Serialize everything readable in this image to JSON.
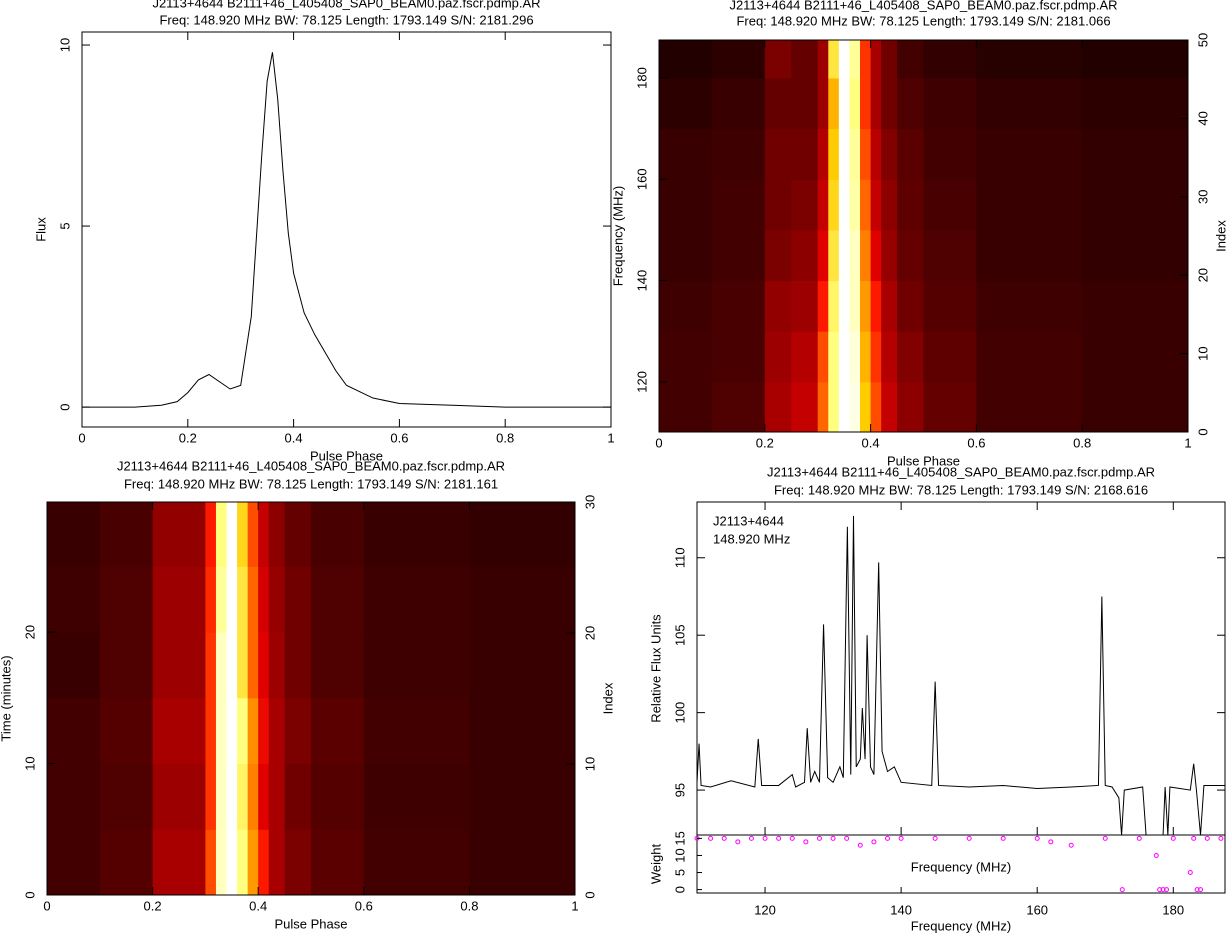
{
  "chart_data": [
    {
      "type": "line",
      "title": "J2113+4644  B2111+46_L405408_SAP0_BEAM0.paz.fscr.pdmp.AR",
      "subtitle": "Freq: 148.920 MHz BW: 78.125 Length: 1793.149 S/N: 2181.296",
      "xlabel": "Pulse Phase",
      "ylabel": "Flux",
      "xlim": [
        0,
        1
      ],
      "xticks": [
        0,
        0.2,
        0.4,
        0.6,
        0.8,
        1
      ],
      "ylim": [
        -0.55,
        10.36
      ],
      "yticks": [
        0,
        5,
        10
      ],
      "color": "#000000",
      "x": [
        0,
        0.05,
        0.1,
        0.15,
        0.18,
        0.2,
        0.22,
        0.24,
        0.26,
        0.28,
        0.3,
        0.32,
        0.34,
        0.35,
        0.36,
        0.37,
        0.38,
        0.39,
        0.4,
        0.42,
        0.44,
        0.46,
        0.48,
        0.5,
        0.55,
        0.6,
        0.7,
        0.8,
        0.9,
        1
      ],
      "values": [
        0,
        0,
        0,
        0.05,
        0.15,
        0.4,
        0.75,
        0.9,
        0.7,
        0.5,
        0.6,
        2.5,
        7,
        9,
        9.8,
        8.5,
        6.5,
        4.8,
        3.7,
        2.6,
        2.0,
        1.5,
        1.0,
        0.6,
        0.25,
        0.1,
        0.05,
        0,
        0,
        0
      ]
    },
    {
      "type": "heatmap",
      "title": "J2113+4644  B2111+46_L405408_SAP0_BEAM0.paz.fscr.pdmp.AR",
      "subtitle": "Freq: 148.920 MHz BW: 78.125 Length: 1793.149 S/N: 2181.066",
      "xlabel": "Pulse Phase",
      "ylabel": "Frequency (MHz)",
      "y2label": "Index",
      "xlim": [
        0,
        1
      ],
      "xticks": [
        0,
        0.2,
        0.4,
        0.6,
        0.8,
        1
      ],
      "ylim": [
        110.1,
        187.5
      ],
      "yticks": [
        120,
        140,
        160,
        180
      ],
      "y2lim": [
        0,
        50
      ],
      "y2ticks": [
        0,
        10,
        20,
        30,
        40,
        50
      ],
      "xbins": [
        0,
        0.1,
        0.2,
        0.25,
        0.3,
        0.32,
        0.34,
        0.36,
        0.38,
        0.4,
        0.42,
        0.45,
        0.5,
        0.6,
        0.8,
        1
      ],
      "ybins": [
        110.1,
        120,
        130,
        140,
        150,
        160,
        170,
        180,
        187.5
      ],
      "z": [
        [
          0.12,
          0.14,
          0.3,
          0.35,
          0.6,
          0.9,
          1,
          0.98,
          0.8,
          0.55,
          0.35,
          0.25,
          0.18,
          0.12,
          0.1
        ],
        [
          0.12,
          0.13,
          0.28,
          0.32,
          0.55,
          0.9,
          1,
          0.97,
          0.75,
          0.5,
          0.32,
          0.23,
          0.17,
          0.12,
          0.1
        ],
        [
          0.11,
          0.13,
          0.26,
          0.28,
          0.45,
          0.88,
          1,
          0.95,
          0.7,
          0.45,
          0.3,
          0.2,
          0.15,
          0.11,
          0.1
        ],
        [
          0.1,
          0.12,
          0.22,
          0.25,
          0.4,
          0.85,
          1,
          0.95,
          0.65,
          0.4,
          0.27,
          0.18,
          0.14,
          0.1,
          0.09
        ],
        [
          0.1,
          0.12,
          0.2,
          0.22,
          0.35,
          0.82,
          1,
          0.93,
          0.6,
          0.35,
          0.25,
          0.17,
          0.13,
          0.1,
          0.09
        ],
        [
          0.1,
          0.11,
          0.2,
          0.2,
          0.32,
          0.8,
          1,
          0.92,
          0.55,
          0.33,
          0.23,
          0.16,
          0.12,
          0.1,
          0.09
        ],
        [
          0.08,
          0.1,
          0.18,
          0.18,
          0.28,
          0.75,
          1,
          0.9,
          0.5,
          0.3,
          0.2,
          0.14,
          0.11,
          0.09,
          0.08
        ],
        [
          0.06,
          0.08,
          0.22,
          0.18,
          0.28,
          0.85,
          1,
          0.92,
          0.5,
          0.3,
          0.2,
          0.12,
          0.09,
          0.07,
          0.06
        ]
      ]
    },
    {
      "type": "heatmap",
      "title": "J2113+4644  B2111+46_L405408_SAP0_BEAM0.paz.fscr.pdmp.AR",
      "subtitle": "Freq: 148.920 MHz BW: 78.125 Length: 1793.149 S/N: 2181.161",
      "xlabel": "Pulse Phase",
      "ylabel": "Time (minutes)",
      "y2label": "Index",
      "xlim": [
        0,
        1
      ],
      "xticks": [
        0,
        0.2,
        0.4,
        0.6,
        0.8,
        1
      ],
      "ylim": [
        0,
        29.9
      ],
      "yticks": [
        0,
        10,
        20
      ],
      "y2lim": [
        0,
        30
      ],
      "y2ticks": [
        0,
        10,
        20,
        30
      ],
      "xbins": [
        0,
        0.1,
        0.2,
        0.25,
        0.3,
        0.32,
        0.34,
        0.36,
        0.38,
        0.4,
        0.42,
        0.45,
        0.5,
        0.6,
        0.8,
        1
      ],
      "ybins": [
        0,
        5,
        10,
        15,
        20,
        25,
        29.9
      ],
      "z": [
        [
          0.12,
          0.15,
          0.3,
          0.3,
          0.55,
          0.95,
          1,
          0.9,
          0.7,
          0.45,
          0.3,
          0.22,
          0.16,
          0.12,
          0.1
        ],
        [
          0.12,
          0.14,
          0.28,
          0.28,
          0.5,
          0.95,
          1,
          0.88,
          0.65,
          0.4,
          0.3,
          0.2,
          0.15,
          0.11,
          0.1
        ],
        [
          0.12,
          0.15,
          0.3,
          0.3,
          0.5,
          0.95,
          1,
          0.9,
          0.68,
          0.42,
          0.3,
          0.22,
          0.16,
          0.12,
          0.1
        ],
        [
          0.1,
          0.14,
          0.28,
          0.28,
          0.5,
          0.95,
          1,
          0.85,
          0.6,
          0.4,
          0.28,
          0.2,
          0.14,
          0.11,
          0.1
        ],
        [
          0.11,
          0.14,
          0.28,
          0.28,
          0.48,
          0.92,
          1,
          0.85,
          0.6,
          0.38,
          0.27,
          0.2,
          0.14,
          0.11,
          0.1
        ],
        [
          0.1,
          0.13,
          0.26,
          0.26,
          0.45,
          0.9,
          1,
          0.82,
          0.55,
          0.35,
          0.25,
          0.18,
          0.13,
          0.1,
          0.09
        ]
      ]
    },
    {
      "type": "line",
      "title": "J2113+4644  B2111+46_L405408_SAP0_BEAM0.paz.fscr.pdmp.AR",
      "subtitle": "Freq: 148.920 MHz BW: 78.125 Length: 1793.149 S/N: 2168.616",
      "annotations": [
        "J2113+4644",
        "148.920 MHz"
      ],
      "xlabel": "Frequency (MHz)",
      "ylabel": "Relative Flux Units",
      "xlim": [
        110,
        187.6
      ],
      "xticks": [
        120,
        140,
        160,
        180
      ],
      "ylim": [
        92.1,
        113.6
      ],
      "yticks": [
        95,
        100,
        105,
        110
      ],
      "color": "#000000",
      "x": [
        110,
        110.3,
        110.6,
        112,
        115,
        118.5,
        119,
        119.5,
        122,
        124,
        124.5,
        125.8,
        126.2,
        126.7,
        127.3,
        128,
        128.6,
        129.2,
        130,
        131,
        131.5,
        132.1,
        132.6,
        133,
        133.4,
        134,
        134.3,
        134.7,
        135,
        135.5,
        136,
        136.7,
        137.2,
        138,
        139,
        140,
        144.5,
        145,
        145.5,
        150,
        155,
        160,
        165,
        169,
        169.5,
        170,
        171,
        172,
        172.4,
        172.8,
        175.5,
        176,
        178.5,
        178.8,
        179.2,
        179.5,
        182.5,
        183,
        183.4,
        184,
        184.5,
        187.6
      ],
      "values": [
        95.5,
        98,
        95.3,
        95.2,
        95.6,
        95.2,
        98.3,
        95.3,
        95.3,
        96,
        95.2,
        95.5,
        99,
        95.5,
        96.2,
        95.5,
        105.7,
        95.8,
        95.5,
        96.5,
        95.8,
        112,
        96,
        112.7,
        96.5,
        97,
        100.3,
        97,
        105,
        96.5,
        96,
        109.7,
        97.5,
        96.2,
        96.5,
        95.5,
        95.3,
        102,
        95.3,
        95.2,
        95.3,
        95.1,
        95.2,
        95.3,
        107.5,
        95.3,
        95.2,
        94.5,
        92.1,
        95,
        95.2,
        92.1,
        92.1,
        95.2,
        92.1,
        95.2,
        95,
        96.7,
        95,
        92.1,
        95.3,
        95.3
      ],
      "weights": {
        "ylabel": "Weight",
        "xlabel": "Frequency (MHz)",
        "color": "#ff00ff",
        "ylim": [
          -1,
          16
        ],
        "yticks": [
          0,
          5,
          10,
          15
        ],
        "x": [
          110,
          112,
          114,
          116,
          118,
          120,
          122,
          124,
          126,
          128,
          130,
          132,
          134,
          136,
          138,
          140,
          145,
          150,
          155,
          160,
          162,
          165,
          170,
          172.5,
          175,
          177.5,
          178,
          178.5,
          179,
          180,
          182.5,
          183,
          183.5,
          184,
          185,
          187
        ],
        "values": [
          15,
          15,
          15,
          14,
          15,
          15,
          15,
          15,
          14,
          15,
          15,
          15,
          13,
          14,
          15,
          15,
          15,
          15,
          15,
          15,
          14,
          13,
          15,
          0,
          15,
          10,
          0,
          0,
          0,
          15,
          5,
          15,
          0,
          0,
          15,
          15
        ]
      }
    }
  ]
}
